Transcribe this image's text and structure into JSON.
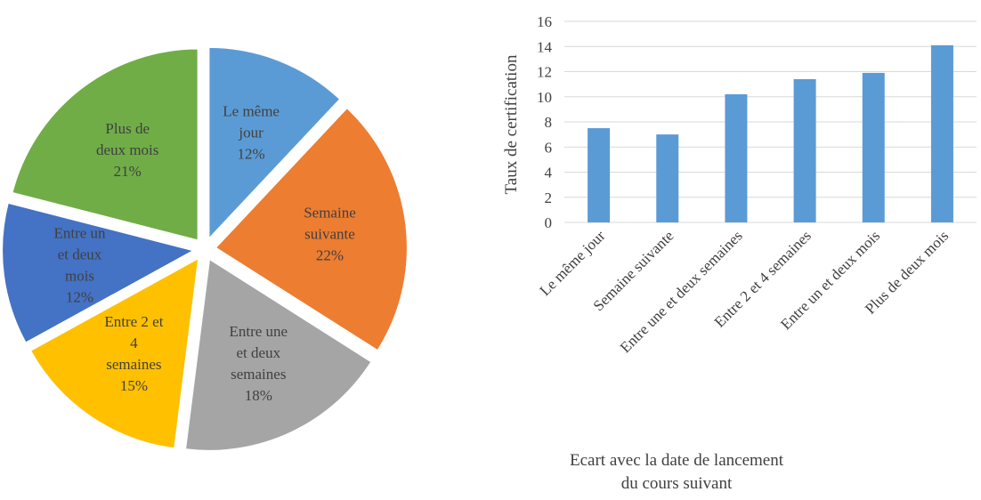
{
  "chart_data": [
    {
      "type": "pie",
      "title": "",
      "slices": [
        {
          "label_lines": [
            "Le même",
            "jour",
            "12%"
          ],
          "value": 12,
          "color": "#5B9BD5"
        },
        {
          "label_lines": [
            "Semaine",
            "suivante",
            "22%"
          ],
          "value": 22,
          "color": "#ED7D31"
        },
        {
          "label_lines": [
            "Entre une",
            "et deux",
            "semaines",
            "18%"
          ],
          "value": 18,
          "color": "#A5A5A5"
        },
        {
          "label_lines": [
            "Entre 2 et",
            "4",
            "semaines",
            "15%"
          ],
          "value": 15,
          "color": "#FFC000"
        },
        {
          "label_lines": [
            "Entre un",
            "et deux",
            "mois",
            "12%"
          ],
          "value": 12,
          "color": "#4472C4"
        },
        {
          "label_lines": [
            "Plus de",
            "deux mois",
            "21%"
          ],
          "value": 21,
          "color": "#70AD47"
        }
      ],
      "start_angle_deg": 0,
      "exploded": true
    },
    {
      "type": "bar",
      "title": "",
      "categories": [
        "Le même jour",
        "Semaine suivante",
        "Entre une et deux semaines",
        "Entre 2 et 4 semaines",
        "Entre un et deux mois",
        "Plus de deux mois"
      ],
      "values": [
        7.5,
        7.0,
        10.2,
        11.4,
        11.9,
        14.1
      ],
      "ylabel": "Taux de certification",
      "xlabel_lines": [
        "Ecart avec la date de lancement",
        "du cours suivant"
      ],
      "ylim": [
        0,
        16
      ],
      "yticks": [
        0,
        2,
        4,
        6,
        8,
        10,
        12,
        14,
        16
      ],
      "grid": "horizontal",
      "bar_color": "#5B9BD5",
      "legend": "none"
    }
  ]
}
